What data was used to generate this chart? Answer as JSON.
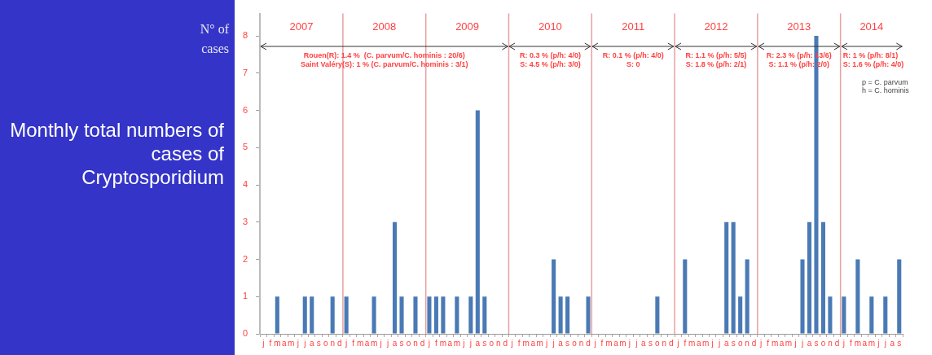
{
  "chart_data": {
    "type": "bar",
    "title": "Monthly total numbers of cases of Cryptosporidium",
    "ylabel": "N° of cases",
    "categories": [
      "j",
      "f",
      "m",
      "a",
      "m",
      "j",
      "j",
      "a",
      "s",
      "o",
      "n",
      "d",
      "j",
      "f",
      "m",
      "a",
      "m",
      "j",
      "j",
      "a",
      "s",
      "o",
      "n",
      "d",
      "j",
      "f",
      "m",
      "a",
      "m",
      "j",
      "j",
      "a",
      "s",
      "o",
      "n",
      "d",
      "j",
      "f",
      "m",
      "a",
      "m",
      "j",
      "j",
      "a",
      "s",
      "o",
      "n",
      "d",
      "j",
      "f",
      "m",
      "a",
      "m",
      "j",
      "j",
      "a",
      "s",
      "o",
      "n",
      "d",
      "j",
      "f",
      "m",
      "a",
      "m",
      "j",
      "j",
      "a",
      "s",
      "o",
      "n",
      "d",
      "j",
      "f",
      "m",
      "a",
      "m",
      "j",
      "j",
      "a",
      "s",
      "o",
      "n",
      "d",
      "j",
      "f",
      "m",
      "a",
      "m",
      "j",
      "j",
      "a",
      "s"
    ],
    "values": [
      0,
      0,
      1,
      0,
      0,
      0,
      1,
      1,
      0,
      0,
      1,
      0,
      1,
      0,
      0,
      0,
      1,
      0,
      0,
      3,
      1,
      0,
      1,
      0,
      1,
      1,
      1,
      0,
      1,
      0,
      1,
      6,
      1,
      0,
      0,
      0,
      0,
      0,
      0,
      0,
      0,
      0,
      2,
      1,
      1,
      0,
      0,
      1,
      0,
      0,
      0,
      0,
      0,
      0,
      0,
      0,
      0,
      1,
      0,
      0,
      0,
      2,
      0,
      0,
      0,
      0,
      0,
      3,
      3,
      1,
      2,
      0,
      0,
      0,
      0,
      0,
      0,
      0,
      2,
      3,
      8,
      3,
      1,
      0,
      1,
      0,
      2,
      0,
      1,
      0,
      1,
      0,
      2
    ],
    "color": "#4a7ab5",
    "ylim": [
      0,
      8.6
    ],
    "yticks": [
      0,
      1,
      2,
      3,
      4,
      5,
      6,
      7,
      8
    ],
    "grid": false,
    "legend": false,
    "annotations": [
      "2007",
      "2008",
      "2009",
      "2010",
      "2011",
      "2012",
      "2013",
      "2014",
      "Rouen(R): 1.4 %  (C. parvum/C. hominis : 20/6)\nSaint Valéry(S): 1 % (C. parvum/C. hominis : 3/1)",
      "R: 0.3 % (p/h: 4/0)\nS: 4.5 % (p/h: 3/0)",
      "R: 0.1 % (p/h: 4/0)\nS: 0",
      "R: 1.1 % (p/h: 5/5)\nS: 1.8 % (p/h: 2/1)",
      "R: 2.3 % (p/h: 13/6)\nS: 1.1 % (p/h: 2/0)",
      "R: 1 % (p/h: 8/1)\nS: 1.6 % (p/h: 4/0)",
      "p = C. parvum\nh = C. hominis"
    ]
  }
}
